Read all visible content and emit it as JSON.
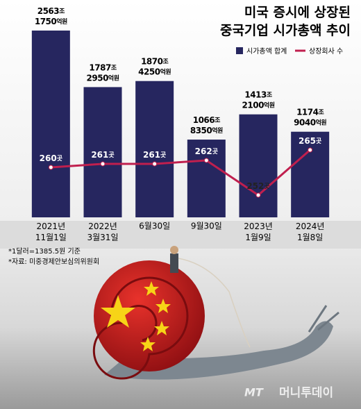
{
  "chart_data": {
    "type": "bar-line",
    "title": "미국 증시에 상장된\n중국기업 시가총액 추이",
    "categories": [
      "2021년\n11월1일",
      "2022년\n3월31일",
      "6월30일",
      "9월30일",
      "2023년\n1월9일",
      "2024년\n1월8일"
    ],
    "series": [
      {
        "name": "시가총액 합계",
        "color": "#26265f",
        "values": [
          2563.175,
          1787.295,
          1870.425,
          1066.835,
          1413.21,
          1174.904
        ],
        "value_labels": [
          "2563조\n1750억원",
          "1787조\n2950억원",
          "1870조\n4250억원",
          "1066조\n8350억원",
          "1413조\n2100억원",
          "1174조\n9040억원"
        ]
      },
      {
        "name": "상장회사 수",
        "color": "#c01f4e",
        "values": [
          260,
          261,
          261,
          262,
          252,
          265
        ],
        "value_labels": [
          "260곳",
          "261곳",
          "261곳",
          "262곳",
          "252곳",
          "265곳"
        ]
      }
    ],
    "notes": [
      "*1달러=1385.5원 기준",
      "*자료: 미중경제안보심의위원회"
    ],
    "logo": "MT",
    "watermark": "머니투데이"
  }
}
